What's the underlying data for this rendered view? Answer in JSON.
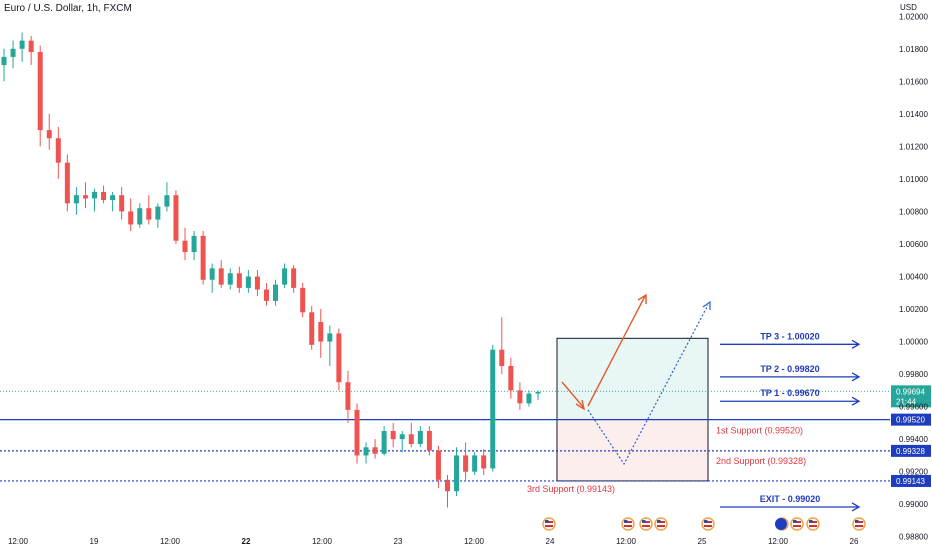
{
  "header": {
    "title": "Euro / U.S. Dollar, 1h, FXCM",
    "currency": "USD"
  },
  "colors": {
    "up": "#26a69a",
    "down": "#ef5350",
    "level_line": "#1e3cbe",
    "current_line": "#26a69a",
    "support_text": "#e5353f",
    "target_box": "#e8f7f5",
    "stop_box": "#fdeeee",
    "arrow": "#e05a2b",
    "dotted_path": "#2d5fd0"
  },
  "chart_data": {
    "type": "candlestick",
    "y_axis_ticks": [
      "1.02000",
      "1.01800",
      "1.01600",
      "1.01400",
      "1.01200",
      "1.01000",
      "1.00800",
      "1.00600",
      "1.00400",
      "1.00200",
      "1.00000",
      "0.99800",
      "0.99600",
      "0.99400",
      "0.99200",
      "0.99000",
      "0.98800"
    ],
    "x_axis_ticks": [
      {
        "label": "12:00",
        "bold": false
      },
      {
        "label": "19",
        "bold": false
      },
      {
        "label": "12:00",
        "bold": false
      },
      {
        "label": "22",
        "bold": true
      },
      {
        "label": "12:00",
        "bold": false
      },
      {
        "label": "23",
        "bold": false
      },
      {
        "label": "12:00",
        "bold": false
      },
      {
        "label": "24",
        "bold": false
      },
      {
        "label": "12:00",
        "bold": false
      },
      {
        "label": "25",
        "bold": false
      },
      {
        "label": "12:00",
        "bold": false
      },
      {
        "label": "26",
        "bold": false
      }
    ],
    "ylim": [
      0.9878,
      1.021
    ],
    "candles": [
      [
        1.017,
        1.018,
        1.016,
        1.0175
      ],
      [
        1.0175,
        1.0185,
        1.0168,
        1.018
      ],
      [
        1.018,
        1.019,
        1.0172,
        1.0185
      ],
      [
        1.0185,
        1.0188,
        1.017,
        1.0178
      ],
      [
        1.0178,
        1.0182,
        1.012,
        1.013
      ],
      [
        1.013,
        1.014,
        1.0118,
        1.0125
      ],
      [
        1.0125,
        1.0132,
        1.01,
        1.011
      ],
      [
        1.011,
        1.0115,
        1.008,
        1.0085
      ],
      [
        1.0085,
        1.0095,
        1.0078,
        1.009
      ],
      [
        1.009,
        1.0098,
        1.0082,
        1.0088
      ],
      [
        1.0088,
        1.0094,
        1.008,
        1.0092
      ],
      [
        1.0092,
        1.0096,
        1.0085,
        1.0087
      ],
      [
        1.0087,
        1.0092,
        1.008,
        1.009
      ],
      [
        1.009,
        1.0095,
        1.0075,
        1.008
      ],
      [
        1.008,
        1.0088,
        1.0068,
        1.0072
      ],
      [
        1.0072,
        1.0085,
        1.007,
        1.0082
      ],
      [
        1.0082,
        1.009,
        1.0072,
        1.0075
      ],
      [
        1.0075,
        1.0085,
        1.007,
        1.0083
      ],
      [
        1.0083,
        1.0098,
        1.008,
        1.009
      ],
      [
        1.009,
        1.0093,
        1.006,
        1.0062
      ],
      [
        1.0062,
        1.007,
        1.005,
        1.0055
      ],
      [
        1.0055,
        1.0068,
        1.005,
        1.0065
      ],
      [
        1.0065,
        1.0068,
        1.0035,
        1.0038
      ],
      [
        1.0038,
        1.0048,
        1.003,
        1.0045
      ],
      [
        1.0045,
        1.005,
        1.0033,
        1.0035
      ],
      [
        1.0035,
        1.0045,
        1.0032,
        1.0042
      ],
      [
        1.0042,
        1.0046,
        1.003,
        1.0033
      ],
      [
        1.0033,
        1.0044,
        1.003,
        1.004
      ],
      [
        1.004,
        1.0044,
        1.0028,
        1.0032
      ],
      [
        1.0032,
        1.0036,
        1.0022,
        1.0025
      ],
      [
        1.0025,
        1.0038,
        1.0022,
        1.0035
      ],
      [
        1.0035,
        1.0048,
        1.0033,
        1.0045
      ],
      [
        1.0045,
        1.0047,
        1.003,
        1.0033
      ],
      [
        1.0033,
        1.0036,
        1.0015,
        1.0018
      ],
      [
        1.0018,
        1.0022,
        0.9995,
        0.9998
      ],
      [
        1.0012,
        1.002,
        0.999,
        1.0
      ],
      [
        1.0,
        1.001,
        0.9985,
        1.0005
      ],
      [
        1.0005,
        1.0008,
        0.997,
        0.9975
      ],
      [
        0.9975,
        0.9982,
        0.995,
        0.9958
      ],
      [
        0.9958,
        0.9962,
        0.9925,
        0.993
      ],
      [
        0.993,
        0.9938,
        0.9925,
        0.9935
      ],
      [
        0.9935,
        0.994,
        0.9928,
        0.9931
      ],
      [
        0.9931,
        0.9948,
        0.993,
        0.9945
      ],
      [
        0.9945,
        0.995,
        0.9935,
        0.994
      ],
      [
        0.994,
        0.9945,
        0.9932,
        0.9943
      ],
      [
        0.9943,
        0.995,
        0.9935,
        0.9937
      ],
      [
        0.9937,
        0.9948,
        0.9935,
        0.9945
      ],
      [
        0.9945,
        0.9948,
        0.993,
        0.9933
      ],
      [
        0.9933,
        0.9936,
        0.991,
        0.9915
      ],
      [
        0.9915,
        0.9918,
        0.9898,
        0.9908
      ],
      [
        0.9908,
        0.9935,
        0.9905,
        0.993
      ],
      [
        0.993,
        0.9938,
        0.9915,
        0.992
      ],
      [
        0.992,
        0.9932,
        0.9918,
        0.993
      ],
      [
        0.993,
        0.9934,
        0.9918,
        0.9922
      ],
      [
        0.9922,
        0.9998,
        0.992,
        0.9995
      ],
      [
        0.9995,
        1.0015,
        0.998,
        0.9985
      ],
      [
        0.9985,
        0.999,
        0.9965,
        0.997
      ],
      [
        0.997,
        0.9975,
        0.9958,
        0.9962
      ],
      [
        0.9962,
        0.997,
        0.996,
        0.9968
      ],
      [
        0.9968,
        0.997,
        0.9964,
        0.9969
      ]
    ],
    "current_price": {
      "value": "0.99694",
      "countdown": "21:44"
    },
    "levels": [
      {
        "name": "support-1",
        "value": 0.9952,
        "tag": "0.99520",
        "style": "solid"
      },
      {
        "name": "support-2",
        "value": 0.99328,
        "tag": "0.99328",
        "style": "dotted"
      },
      {
        "name": "support-3",
        "value": 0.99143,
        "tag": "0.99143",
        "style": "dotted"
      }
    ],
    "annotations": {
      "tp3": "TP 3 - 1.00020",
      "tp2": "TP 2 - 0.99820",
      "tp1": "TP 1 - 0.99670",
      "support1": "1st Support (0.99520)",
      "support2": "2nd Support (0.99328)",
      "support3": "3rd Support (0.99143)",
      "exit": "EXIT - 0.99020"
    },
    "annotation_values": {
      "tp3": 1.0002,
      "tp2": 0.9982,
      "tp1": 0.9967,
      "exit": 0.9902
    },
    "position_box": {
      "top_value": 1.0002,
      "split_value": 0.9952,
      "bottom_value": 0.99143
    }
  }
}
